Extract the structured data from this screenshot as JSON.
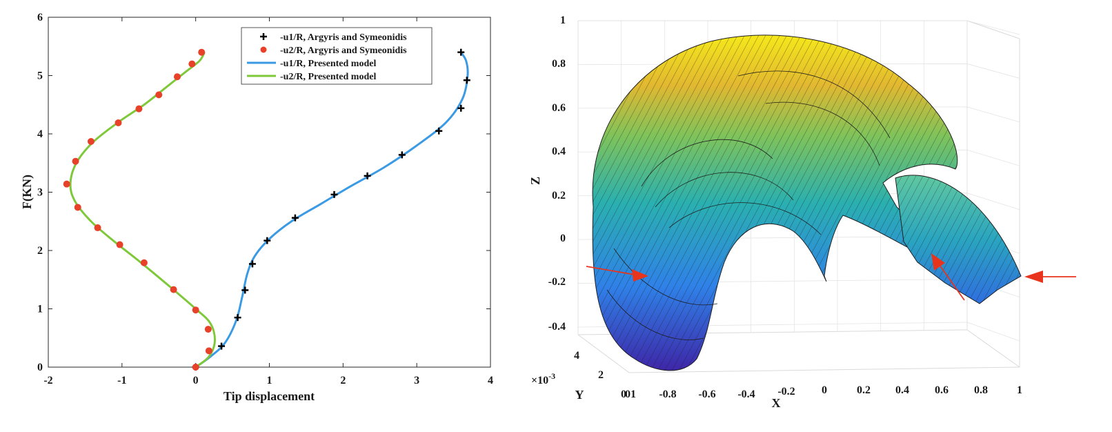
{
  "chart_data": [
    {
      "type": "line",
      "xlabel": "Tip displacement",
      "ylabel": "F(KN)",
      "xlim": [
        -2,
        4
      ],
      "ylim": [
        0,
        6
      ],
      "xticks": [
        -2,
        -1,
        0,
        1,
        2,
        3,
        4
      ],
      "yticks": [
        0,
        1,
        2,
        3,
        4,
        5,
        6
      ],
      "grid": false,
      "legend_position": "top-right",
      "series": [
        {
          "name": "-u1/R, Argyris and Symeonidis",
          "style": "marker-plus",
          "color": "#000000",
          "points": [
            [
              0,
              0
            ],
            [
              0.35,
              0.36
            ],
            [
              0.57,
              0.85
            ],
            [
              0.67,
              1.32
            ],
            [
              0.77,
              1.77
            ],
            [
              0.97,
              2.17
            ],
            [
              1.35,
              2.56
            ],
            [
              1.88,
              2.96
            ],
            [
              2.33,
              3.28
            ],
            [
              2.8,
              3.64
            ],
            [
              3.3,
              4.05
            ],
            [
              3.6,
              4.44
            ],
            [
              3.68,
              4.92
            ],
            [
              3.6,
              5.4
            ]
          ]
        },
        {
          "name": "-u2/R, Argyris and Symeonidis",
          "style": "marker-dot",
          "color": "#e8412a",
          "points": [
            [
              0,
              0
            ],
            [
              0.18,
              0.28
            ],
            [
              0.17,
              0.65
            ],
            [
              0.0,
              0.98
            ],
            [
              -0.3,
              1.33
            ],
            [
              -0.7,
              1.79
            ],
            [
              -1.03,
              2.1
            ],
            [
              -1.33,
              2.39
            ],
            [
              -1.6,
              2.74
            ],
            [
              -1.75,
              3.14
            ],
            [
              -1.63,
              3.53
            ],
            [
              -1.42,
              3.87
            ],
            [
              -1.05,
              4.19
            ],
            [
              -0.77,
              4.43
            ],
            [
              -0.5,
              4.67
            ],
            [
              -0.25,
              4.98
            ],
            [
              -0.05,
              5.2
            ],
            [
              0.08,
              5.4
            ]
          ]
        },
        {
          "name": "-u1/R, Presented model",
          "style": "line",
          "color": "#3a9ae4",
          "points": [
            [
              0,
              0
            ],
            [
              0.2,
              0.18
            ],
            [
              0.4,
              0.42
            ],
            [
              0.55,
              0.8
            ],
            [
              0.63,
              1.2
            ],
            [
              0.7,
              1.6
            ],
            [
              0.8,
              1.9
            ],
            [
              1.0,
              2.2
            ],
            [
              1.3,
              2.5
            ],
            [
              1.7,
              2.8
            ],
            [
              2.1,
              3.1
            ],
            [
              2.55,
              3.42
            ],
            [
              3.0,
              3.8
            ],
            [
              3.4,
              4.2
            ],
            [
              3.62,
              4.6
            ],
            [
              3.69,
              5.0
            ],
            [
              3.67,
              5.25
            ],
            [
              3.6,
              5.4
            ]
          ]
        },
        {
          "name": "-u2/R, Presented model",
          "style": "line",
          "color": "#7ec83a",
          "points": [
            [
              0,
              0
            ],
            [
              0.18,
              0.18
            ],
            [
              0.26,
              0.45
            ],
            [
              0.2,
              0.75
            ],
            [
              0.0,
              1.0
            ],
            [
              -0.35,
              1.38
            ],
            [
              -0.75,
              1.8
            ],
            [
              -1.1,
              2.15
            ],
            [
              -1.42,
              2.5
            ],
            [
              -1.64,
              2.85
            ],
            [
              -1.7,
              3.15
            ],
            [
              -1.62,
              3.5
            ],
            [
              -1.4,
              3.85
            ],
            [
              -1.05,
              4.2
            ],
            [
              -0.7,
              4.5
            ],
            [
              -0.4,
              4.8
            ],
            [
              -0.15,
              5.05
            ],
            [
              0.05,
              5.25
            ],
            [
              0.12,
              5.4
            ]
          ]
        }
      ]
    },
    {
      "type": "surface",
      "xlabel": "X",
      "ylabel": "Y",
      "zlabel": "Z",
      "xlim": [
        -1,
        1
      ],
      "ylim": [
        0,
        0.005
      ],
      "zlim": [
        -0.4,
        1
      ],
      "xticks": [
        "0",
        "-0.8",
        "-0.6",
        "-0.4",
        "-0.2",
        "0",
        "0.2",
        "0.4",
        "0.6",
        "0.8",
        "1"
      ],
      "yticks": [
        "0",
        "2",
        "4"
      ],
      "zticks": [
        "-0.4",
        "-0.2",
        "0",
        "0.2",
        "0.4",
        "0.6",
        "0.8",
        "1"
      ],
      "y_multiplier": "×10",
      "y_multiplier_exp": "-3",
      "x_first_tick_overlap": "1",
      "colormap": "parula",
      "grid": true,
      "annotations": [
        "red arrows indicating applied loads"
      ]
    }
  ]
}
